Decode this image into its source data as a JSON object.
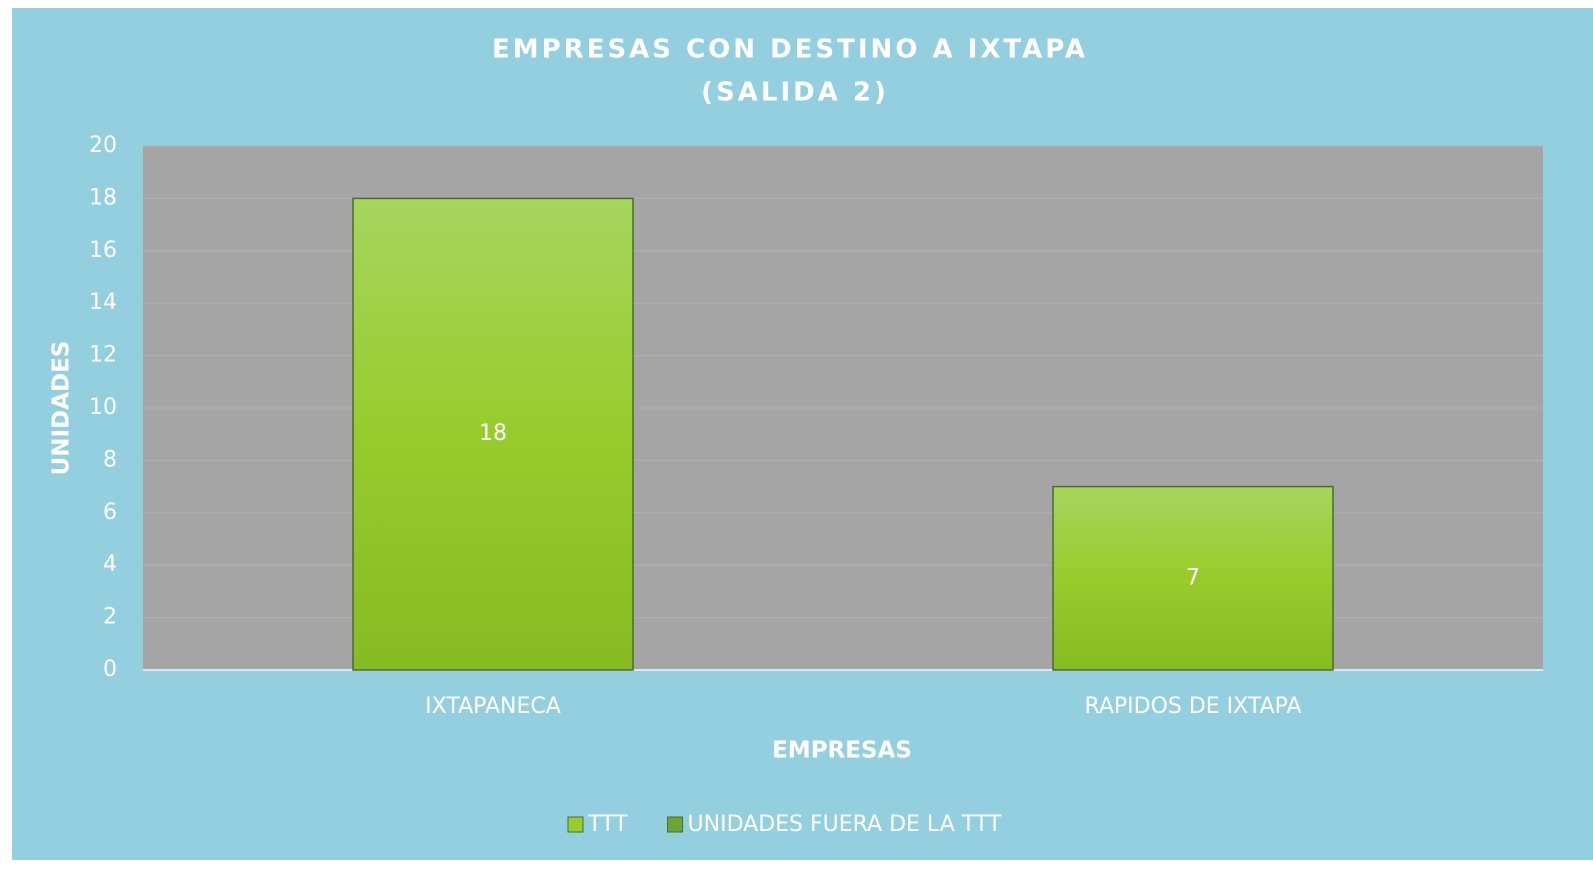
{
  "chart_data": {
    "type": "bar",
    "title": [
      "EMPRESAS CON DESTINO A IXTAPA",
      "(SALIDA 2)"
    ],
    "x_label": "EMPRESAS",
    "y_label": "UNIDADES",
    "categories": [
      "IXTAPANECA",
      "RAPIDOS DE IXTAPA"
    ],
    "series": [
      {
        "name": "TTT",
        "color": "#97cc2c",
        "values": [
          18,
          7
        ]
      },
      {
        "name": "UNIDADES FUERA DE LA TTT",
        "color": "#6aa536",
        "values": [
          null,
          null
        ]
      }
    ],
    "ylim": [
      0,
      20
    ],
    "yticks": [
      0,
      2,
      4,
      6,
      8,
      10,
      12,
      14,
      16,
      18,
      20
    ],
    "grid": true,
    "legend": "bottom"
  }
}
